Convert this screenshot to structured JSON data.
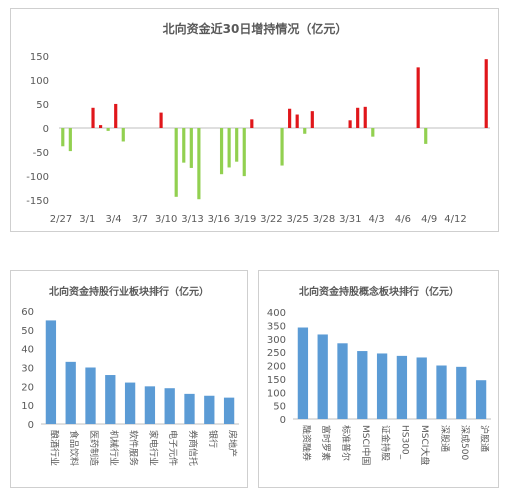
{
  "chart_data": [
    {
      "type": "bar",
      "title": "北向资金近30日增持情况（亿元）",
      "x_tick_labels": [
        "2/27",
        "3/1",
        "3/4",
        "3/7",
        "3/10",
        "3/13",
        "3/16",
        "3/19",
        "3/22",
        "3/25",
        "3/28",
        "3/31",
        "4/3",
        "4/6",
        "4/9",
        "4/12"
      ],
      "y_ticks": [
        150,
        100,
        50,
        0,
        -50,
        -100,
        -150
      ],
      "ylim": [
        -160,
        160
      ],
      "positive_color": "#e0161b",
      "negative_color": "#92d050",
      "values": [
        -38,
        -48,
        0,
        0,
        42,
        6,
        -6,
        50,
        -28,
        0,
        0,
        0,
        0,
        32,
        0,
        -143,
        -72,
        -83,
        -148,
        0,
        0,
        -96,
        -82,
        -70,
        -100,
        18,
        0,
        0,
        0,
        -78,
        40,
        28,
        -12,
        35,
        0,
        0,
        0,
        0,
        16,
        42,
        44,
        -18,
        0,
        0,
        0,
        0,
        0,
        126,
        -33,
        0,
        0,
        0,
        0,
        0,
        0,
        0,
        143
      ]
    },
    {
      "type": "bar",
      "title": "北向资金持股行业板块排行（亿元）",
      "categories": [
        "酿酒行业",
        "食品饮料",
        "医药制造",
        "机械行业",
        "软件服务",
        "家电行业",
        "电子元件",
        "券商信托",
        "银行",
        "房地产"
      ],
      "values": [
        55,
        33,
        30,
        26,
        22,
        20,
        19,
        16,
        15,
        14
      ],
      "y_ticks": [
        60,
        50,
        40,
        30,
        20,
        10,
        0
      ],
      "ylim": [
        0,
        60
      ],
      "bar_color": "#5b9bd5"
    },
    {
      "type": "bar",
      "title": "北向资金持股概念板块排行（亿元）",
      "categories": [
        "融资融券",
        "富时罗素",
        "标准普尔",
        "MSCI中国",
        "证金持股",
        "HS300_",
        "MSCI大盘",
        "深股通",
        "深成500",
        "沪股通"
      ],
      "values": [
        342,
        316,
        283,
        254,
        245,
        236,
        230,
        200,
        195,
        145
      ],
      "y_ticks": [
        400,
        350,
        300,
        250,
        200,
        150,
        100,
        50,
        0
      ],
      "ylim": [
        0,
        400
      ],
      "bar_color": "#5b9bd5"
    }
  ]
}
